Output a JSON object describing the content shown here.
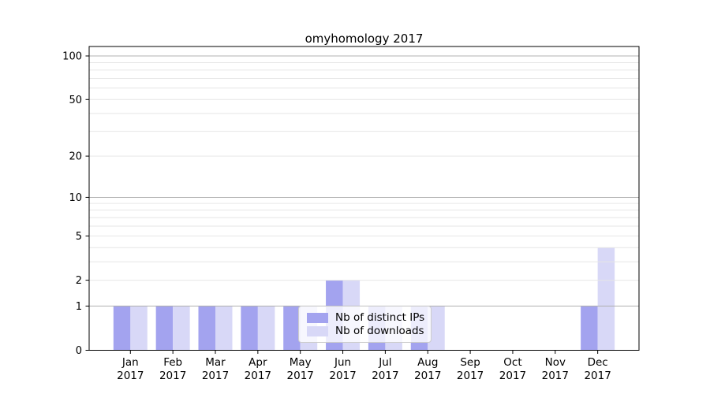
{
  "figure": {
    "background": "#ffffff"
  },
  "chart_data": {
    "type": "bar",
    "title": "omyhomology 2017",
    "categories": [
      "Jan",
      "Feb",
      "Mar",
      "Apr",
      "May",
      "Jun",
      "Jul",
      "Aug",
      "Sep",
      "Oct",
      "Nov",
      "Dec"
    ],
    "year_label": "2017",
    "series": [
      {
        "name": "Nb of distinct IPs",
        "color": "#a3a3ef",
        "values": [
          1,
          1,
          1,
          1,
          1,
          2,
          1,
          1,
          0,
          0,
          0,
          1
        ]
      },
      {
        "name": "Nb of downloads",
        "color": "#d8d8f7",
        "values": [
          1,
          1,
          1,
          1,
          1,
          2,
          1,
          1,
          0,
          0,
          0,
          4
        ]
      }
    ],
    "xlabel": "",
    "ylabel": "",
    "yscale": "log1p",
    "ylim": [
      0,
      116
    ],
    "yticks": [
      0,
      1,
      2,
      5,
      10,
      20,
      50,
      100
    ],
    "major_gridlines": [
      1,
      10,
      100
    ],
    "minor_gridlines": [
      2,
      3,
      4,
      5,
      6,
      7,
      8,
      9,
      20,
      30,
      40,
      50,
      60,
      70,
      80,
      90
    ],
    "grid": "on",
    "legend_position": "lower center, inside plot",
    "colors": {
      "major_grid": "#b0b0b0",
      "minor_grid": "#e6e6e6",
      "spine": "#000000",
      "text": "#000000"
    }
  }
}
